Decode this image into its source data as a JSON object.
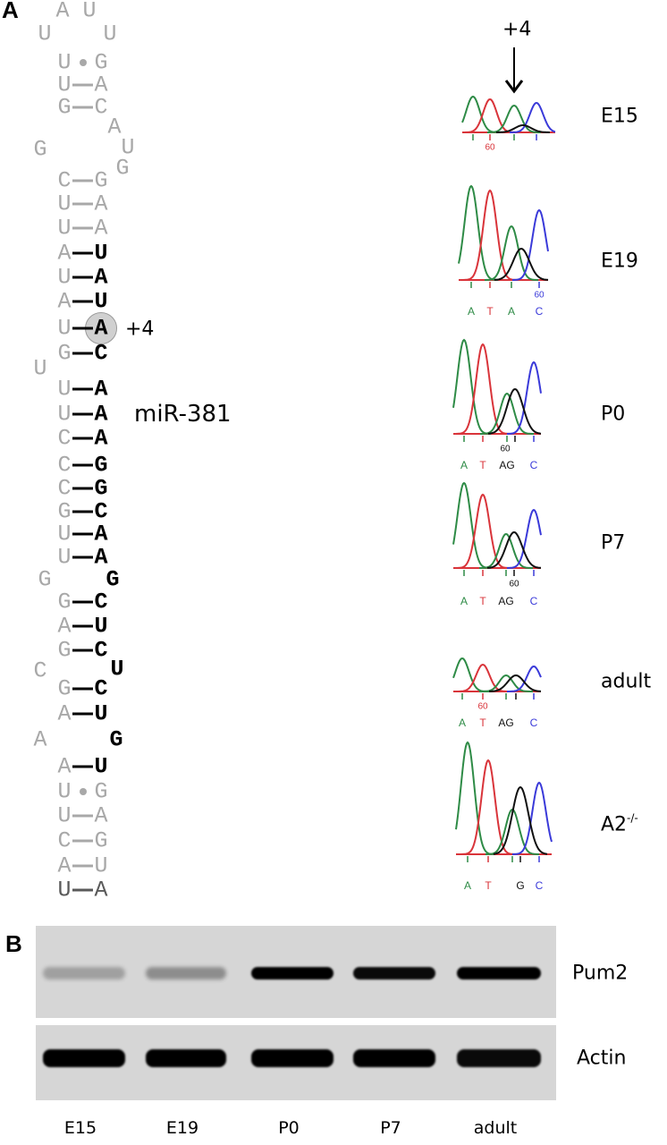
{
  "panel_a": {
    "letter": "A",
    "mirna_label": "miR-381",
    "site_label": "+4",
    "arrow_label": "+4",
    "hairpin": {
      "stem": [
        {
          "left": "U",
          "bond": "•",
          "right": "G",
          "mirna": false
        },
        {
          "left": "U",
          "bond": "-",
          "right": "A",
          "mirna": false
        },
        {
          "left": "G",
          "bond": "-",
          "right": "C",
          "mirna": false
        },
        {
          "left": "C",
          "bond": "-",
          "right": "G",
          "mirna": false
        },
        {
          "left": "U",
          "bond": "-",
          "right": "A",
          "mirna": false
        },
        {
          "left": "U",
          "bond": "-",
          "right": "A",
          "mirna": false
        },
        {
          "left": "A",
          "bond": "-",
          "right": "U",
          "mirna": true
        },
        {
          "left": "U",
          "bond": "-",
          "right": "A",
          "mirna": true
        },
        {
          "left": "A",
          "bond": "-",
          "right": "U",
          "mirna": true
        },
        {
          "left": "U",
          "bond": "-",
          "right": "A",
          "mirna": true,
          "edited": true
        },
        {
          "left": "G",
          "bond": "-",
          "right": "C",
          "mirna": true
        },
        {
          "left": "U",
          "bond": "-",
          "right": "A",
          "mirna": true
        },
        {
          "left": "U",
          "bond": "-",
          "right": "A",
          "mirna": true
        },
        {
          "left": "C",
          "bond": "-",
          "right": "A",
          "mirna": true
        },
        {
          "left": "C",
          "bond": "-",
          "right": "G",
          "mirna": true
        },
        {
          "left": "C",
          "bond": "-",
          "right": "G",
          "mirna": true
        },
        {
          "left": "G",
          "bond": "-",
          "right": "C",
          "mirna": true
        },
        {
          "left": "U",
          "bond": "-",
          "right": "A",
          "mirna": true
        },
        {
          "left": "U",
          "bond": "-",
          "right": "A",
          "mirna": true
        },
        {
          "left": "G",
          "bond": "-",
          "right": "C",
          "mirna": true
        },
        {
          "left": "A",
          "bond": "-",
          "right": "U",
          "mirna": true
        },
        {
          "left": "G",
          "bond": "-",
          "right": "C",
          "mirna": true
        },
        {
          "left": "G",
          "bond": "-",
          "right": "C",
          "mirna": true
        },
        {
          "left": "A",
          "bond": "-",
          "right": "U",
          "mirna": true
        },
        {
          "left": "A",
          "bond": "-",
          "right": "U",
          "mirna": true
        },
        {
          "left": "U",
          "bond": "•",
          "right": "G",
          "mirna": false
        },
        {
          "left": "U",
          "bond": "-",
          "right": "A",
          "mirna": false
        },
        {
          "left": "C",
          "bond": "-",
          "right": "G",
          "mirna": false
        },
        {
          "left": "A",
          "bond": "-",
          "right": "U",
          "mirna": false
        },
        {
          "left": "U",
          "bond": "-",
          "right": "A",
          "mirna": false,
          "dark": true
        }
      ],
      "unpaired": [
        {
          "base": "A",
          "mirna": false
        },
        {
          "base": "U",
          "mirna": false
        },
        {
          "base": "U",
          "mirna": false
        },
        {
          "base": "U",
          "mirna": false
        },
        {
          "base": "A",
          "mirna": false
        },
        {
          "base": "G",
          "mirna": false
        },
        {
          "base": "U",
          "mirna": false
        },
        {
          "base": "G",
          "mirna": false
        },
        {
          "base": "U",
          "mirna": false
        },
        {
          "base": "G",
          "mirna": false
        },
        {
          "base": "G",
          "mirna": true
        },
        {
          "base": "C",
          "mirna": false
        },
        {
          "base": "U",
          "mirna": true
        },
        {
          "base": "A",
          "mirna": false
        },
        {
          "base": "G",
          "mirna": true
        }
      ]
    },
    "chromatograms": [
      {
        "sample": "E15",
        "tick_label": "60",
        "bases": [],
        "peaks": {
          "A1": 40,
          "T": 37,
          "A2": 30,
          "G": 8,
          "C": 33
        }
      },
      {
        "sample": "E19",
        "tick_label": "60",
        "bases": [
          "A",
          "T",
          "A",
          "C"
        ],
        "peaks": {
          "A1": 105,
          "T": 100,
          "A2": 60,
          "G": 35,
          "C": 78
        }
      },
      {
        "sample": "P0",
        "tick_label": "60",
        "bases": [
          "A",
          "T",
          "AG",
          "C"
        ],
        "peaks": {
          "A1": 105,
          "T": 100,
          "A2": 45,
          "G": 50,
          "C": 80
        }
      },
      {
        "sample": "P7",
        "tick_label": "60",
        "bases": [
          "A",
          "T",
          "AG",
          "C"
        ],
        "peaks": {
          "A1": 95,
          "T": 82,
          "A2": 38,
          "G": 40,
          "C": 65
        }
      },
      {
        "sample": "adult",
        "tick_label": "60",
        "bases": [
          "A",
          "T",
          "AG",
          "C"
        ],
        "peaks": {
          "A1": 37,
          "T": 30,
          "A2": 18,
          "G": 18,
          "C": 28
        }
      },
      {
        "sample": "A2",
        "sample_sup": "-/-",
        "tick_label": "",
        "bases": [
          "A",
          "T",
          "G",
          "C"
        ],
        "peaks": {
          "A1": 125,
          "T": 105,
          "A2": 50,
          "G": 75,
          "C": 80
        }
      }
    ],
    "trace_colors": {
      "A": "#2e8b46",
      "T": "#d9343a",
      "G": "#111111",
      "C": "#3a3ad9"
    }
  },
  "panel_b": {
    "letter": "B",
    "lanes": [
      "E15",
      "E19",
      "P0",
      "P7",
      "adult"
    ],
    "gels": [
      {
        "name": "Pum2",
        "band_intensity": [
          0.15,
          0.25,
          1.0,
          0.95,
          1.0
        ]
      },
      {
        "name": "Actin",
        "band_intensity": [
          1.0,
          1.0,
          1.0,
          1.0,
          0.95
        ]
      }
    ]
  }
}
